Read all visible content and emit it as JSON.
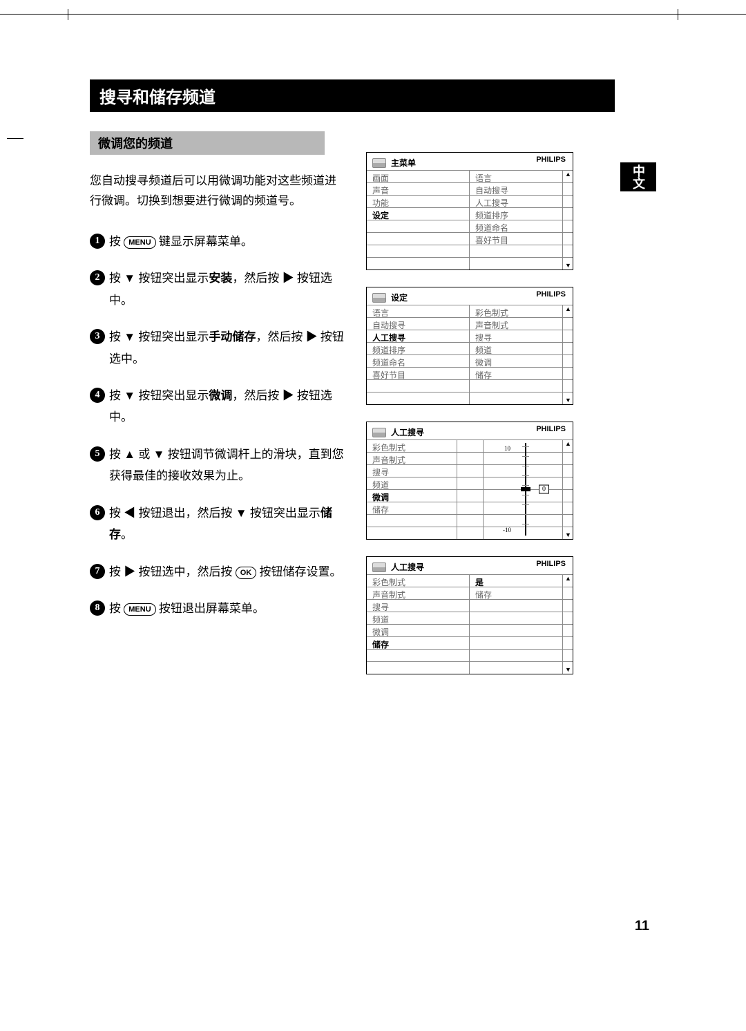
{
  "page": {
    "title": "搜寻和储存频道",
    "subtitle": "微调您的频道",
    "intro": "您自动搜寻频道后可以用微调功能对这些频道进行微调。切换到想要进行微调的频道号。",
    "page_number": "11",
    "side_tab": "中文"
  },
  "buttons": {
    "menu": "MENU",
    "ok": "OK"
  },
  "steps": {
    "s1": "按  (MENU)  键显示屏幕菜单。",
    "s2a": "按  ▼  按钮突出显示",
    "s2b": "安装",
    "s2c": "，然后按  ▶  按钮选中。",
    "s3a": "按  ▼  按钮突出显示",
    "s3b": "手动储存",
    "s3c": "，然后按  ▶  按钮选中。",
    "s4a": "按  ▼  按钮突出显示",
    "s4b": "微调",
    "s4c": "，然后按  ▶  按钮选中。",
    "s5": "按  ▲  或  ▼  按钮调节微调杆上的滑块，直到您获得最佳的接收效果为止。",
    "s6a": "按  ◀  按钮退出，然后按  ▼  按钮突出显示",
    "s6b": "储存",
    "s6c": "。",
    "s7": "按  ▶  按钮选中，然后按  (OK)  按钮储存设置。",
    "s8": "按  (MENU)  按钮退出屏幕菜单。"
  },
  "menu1": {
    "brand": "PHILIPS",
    "title": "主菜单",
    "left": [
      "画面",
      "声音",
      "功能",
      "设定"
    ],
    "right": [
      "语言",
      "自动搜寻",
      "人工搜寻",
      "频道排序",
      "频道命名",
      "喜好节目"
    ],
    "highlight_left_idx": 3
  },
  "menu2": {
    "brand": "PHILIPS",
    "title": "设定",
    "left": [
      "语言",
      "自动搜寻",
      "人工搜寻",
      "频道排序",
      "频道命名",
      "喜好节目"
    ],
    "right": [
      "彩色制式",
      "声音制式",
      "搜寻",
      "频道",
      "微调",
      "储存"
    ],
    "highlight_left_idx": 2
  },
  "menu3": {
    "brand": "PHILIPS",
    "title": "人工搜寻",
    "left": [
      "彩色制式",
      "声音制式",
      "搜寻",
      "频道",
      "微调",
      "储存"
    ],
    "highlight_left_idx": 4,
    "slider": {
      "top_label": "10",
      "bot_label": "-10",
      "value": "0"
    }
  },
  "menu4": {
    "brand": "PHILIPS",
    "title": "人工搜寻",
    "left": [
      "彩色制式",
      "声音制式",
      "搜寻",
      "频道",
      "微调",
      "储存"
    ],
    "right": [
      "是",
      "储存",
      "",
      "",
      "",
      ""
    ],
    "highlight_left_idx": 5,
    "highlight_right_idx": 0
  }
}
